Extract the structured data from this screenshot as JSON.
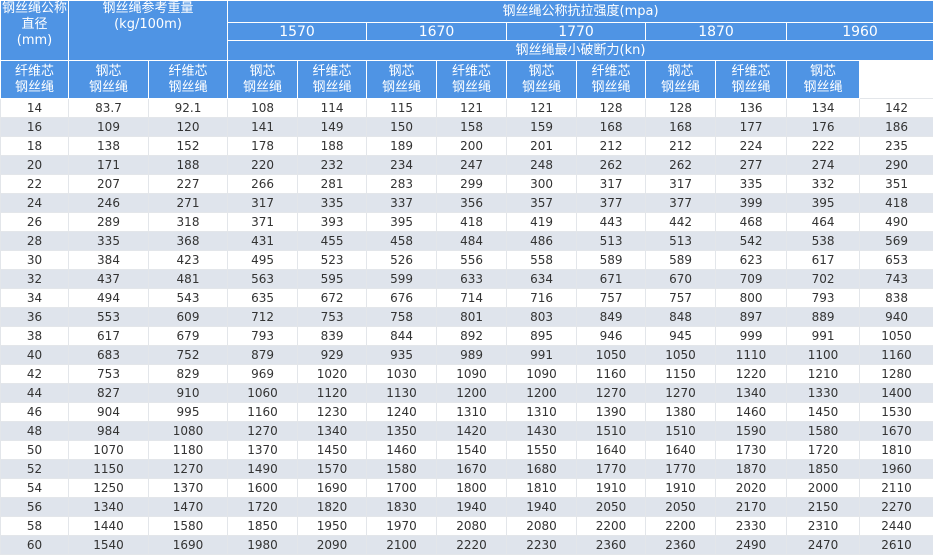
{
  "table": {
    "header": {
      "diameter": [
        "钢丝绳公称",
        "直径",
        "(mm)"
      ],
      "weight": [
        "钢丝绳参考重量",
        "(kg/100m)"
      ],
      "strength": "钢丝绳公称抗拉强度(mpa)",
      "grades": [
        "1570",
        "1670",
        "1770",
        "1870",
        "1960"
      ],
      "breaking": "钢丝绳最小破断力(kn)",
      "sub_headers": [
        [
          "纤维芯",
          "钢丝绳"
        ],
        [
          "钢芯",
          "钢丝绳"
        ],
        [
          "纤维芯",
          "钢丝绳"
        ],
        [
          "钢芯",
          "钢丝绳"
        ],
        [
          "纤维芯",
          "钢丝绳"
        ],
        [
          "钢芯",
          "钢丝绳"
        ],
        [
          "纤维芯",
          "钢丝绳"
        ],
        [
          "钢芯",
          "钢丝绳"
        ],
        [
          "纤维芯",
          "钢丝绳"
        ],
        [
          "钢芯",
          "钢丝绳"
        ],
        [
          "纤维芯",
          "钢丝绳"
        ],
        [
          "钢芯",
          "钢丝绳"
        ]
      ]
    },
    "rows": [
      [
        14,
        83.7,
        92.1,
        108,
        114,
        115,
        121,
        121,
        128,
        128,
        136,
        134,
        142
      ],
      [
        16,
        109,
        120,
        141,
        149,
        150,
        158,
        159,
        168,
        168,
        177,
        176,
        186
      ],
      [
        18,
        138,
        152,
        178,
        188,
        189,
        200,
        201,
        212,
        212,
        224,
        222,
        235
      ],
      [
        20,
        171,
        188,
        220,
        232,
        234,
        247,
        248,
        262,
        262,
        277,
        274,
        290
      ],
      [
        22,
        207,
        227,
        266,
        281,
        283,
        299,
        300,
        317,
        317,
        335,
        332,
        351
      ],
      [
        24,
        246,
        271,
        317,
        335,
        337,
        356,
        357,
        377,
        377,
        399,
        395,
        418
      ],
      [
        26,
        289,
        318,
        371,
        393,
        395,
        418,
        419,
        443,
        442,
        468,
        464,
        490
      ],
      [
        28,
        335,
        368,
        431,
        455,
        458,
        484,
        486,
        513,
        513,
        542,
        538,
        569
      ],
      [
        30,
        384,
        423,
        495,
        523,
        526,
        556,
        558,
        589,
        589,
        623,
        617,
        653
      ],
      [
        32,
        437,
        481,
        563,
        595,
        599,
        633,
        634,
        671,
        670,
        709,
        702,
        743
      ],
      [
        34,
        494,
        543,
        635,
        672,
        676,
        714,
        716,
        757,
        757,
        800,
        793,
        838
      ],
      [
        36,
        553,
        609,
        712,
        753,
        758,
        801,
        803,
        849,
        848,
        897,
        889,
        940
      ],
      [
        38,
        617,
        679,
        793,
        839,
        844,
        892,
        895,
        946,
        945,
        999,
        991,
        1050
      ],
      [
        40,
        683,
        752,
        879,
        929,
        935,
        989,
        991,
        1050,
        1050,
        1110,
        1100,
        1160
      ],
      [
        42,
        753,
        829,
        969,
        1020,
        1030,
        1090,
        1090,
        1160,
        1150,
        1220,
        1210,
        1280
      ],
      [
        44,
        827,
        910,
        1060,
        1120,
        1130,
        1200,
        1200,
        1270,
        1270,
        1340,
        1330,
        1400
      ],
      [
        46,
        904,
        995,
        1160,
        1230,
        1240,
        1310,
        1310,
        1390,
        1380,
        1460,
        1450,
        1530
      ],
      [
        48,
        984,
        1080,
        1270,
        1340,
        1350,
        1420,
        1430,
        1510,
        1510,
        1590,
        1580,
        1670
      ],
      [
        50,
        1070,
        1180,
        1370,
        1450,
        1460,
        1540,
        1550,
        1640,
        1640,
        1730,
        1720,
        1810
      ],
      [
        52,
        1150,
        1270,
        1490,
        1570,
        1580,
        1670,
        1680,
        1770,
        1770,
        1870,
        1850,
        1960
      ],
      [
        54,
        1250,
        1370,
        1600,
        1690,
        1700,
        1800,
        1810,
        1910,
        1910,
        2020,
        2000,
        2110
      ],
      [
        56,
        1340,
        1470,
        1720,
        1820,
        1830,
        1940,
        1940,
        2050,
        2050,
        2170,
        2150,
        2270
      ],
      [
        58,
        1440,
        1580,
        1850,
        1950,
        1970,
        2080,
        2080,
        2200,
        2200,
        2330,
        2310,
        2440
      ],
      [
        60,
        1540,
        1690,
        1980,
        2090,
        2100,
        2220,
        2230,
        2360,
        2360,
        2490,
        2470,
        2610
      ]
    ]
  }
}
